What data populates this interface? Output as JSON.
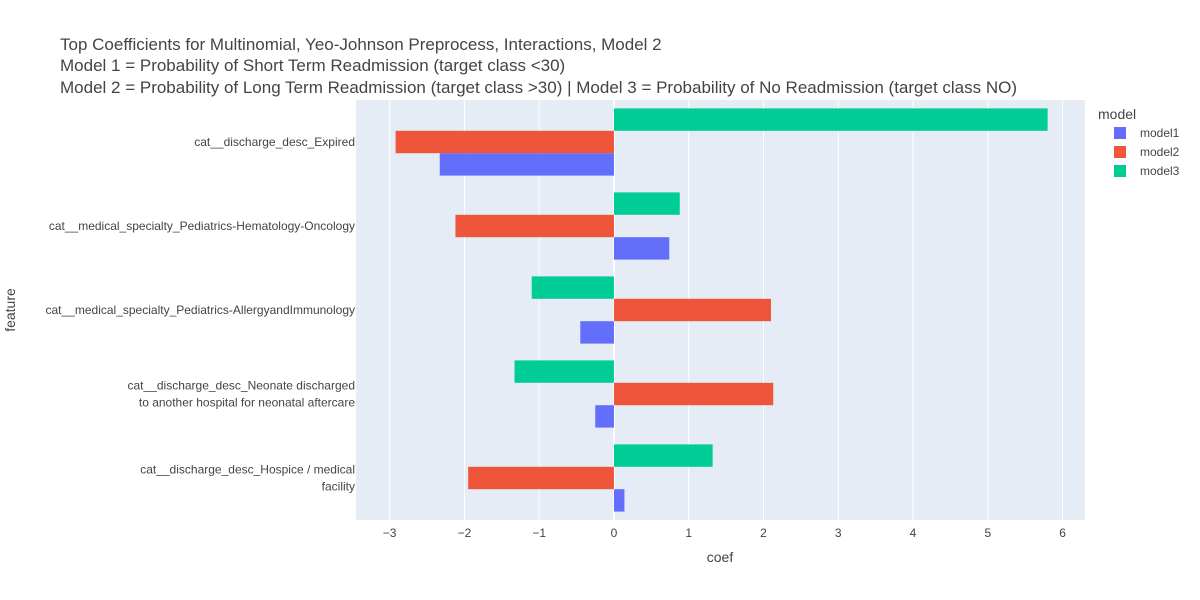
{
  "chart_data": {
    "type": "bar",
    "orientation": "horizontal",
    "title_lines": [
      "Top Coefficients for Multinomial, Yeo-Johnson Preprocess, Interactions, Model 2",
      "Model 1 = Probability of Short Term Readmission (target class <30)",
      "Model 2 = Probability of Long Term Readmission (target class >30) | Model 3 = Probability of No Readmission (target class NO)"
    ],
    "xlabel": "coef",
    "ylabel": "feature",
    "xlim": [
      -3.45,
      6.3
    ],
    "xticks": [
      -3,
      -2,
      -1,
      0,
      1,
      2,
      3,
      4,
      5,
      6
    ],
    "xtick_labels": [
      "−3",
      "−2",
      "−1",
      "0",
      "1",
      "2",
      "3",
      "4",
      "5",
      "6"
    ],
    "grid": true,
    "legend": {
      "title": "model",
      "placement": "right"
    },
    "categories": [
      [
        "cat__discharge_desc_Expired"
      ],
      [
        "cat__medical_specialty_Pediatrics-Hematology-Oncology"
      ],
      [
        "cat__medical_specialty_Pediatrics-AllergyandImmunology"
      ],
      [
        "cat__discharge_desc_Neonate discharged",
        "to another hospital for neonatal aftercare"
      ],
      [
        "cat__discharge_desc_Hospice / medical",
        "facility"
      ]
    ],
    "series": [
      {
        "name": "model1",
        "color": "#636efa",
        "values": [
          -2.33,
          0.74,
          -0.45,
          -0.25,
          0.14
        ]
      },
      {
        "name": "model2",
        "color": "#ef553b",
        "values": [
          -2.92,
          -2.12,
          2.1,
          2.13,
          -1.95
        ]
      },
      {
        "name": "model3",
        "color": "#00cc96",
        "values": [
          5.8,
          0.88,
          -1.1,
          -1.33,
          1.32
        ]
      }
    ]
  }
}
